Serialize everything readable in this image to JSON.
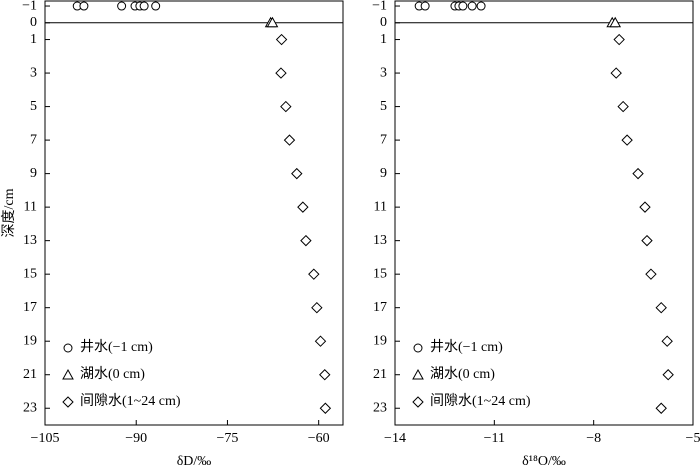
{
  "chart_data": [
    {
      "type": "scatter",
      "xlabel": "δD/‰",
      "ylabel": "深度/cm",
      "xlim": [
        -105,
        -56
      ],
      "ylim": [
        -1.3,
        24
      ],
      "y_inverted": true,
      "xticks": [
        {
          "value": -105,
          "label": "−105"
        },
        {
          "value": -90,
          "label": "−90"
        },
        {
          "value": -75,
          "label": "−75"
        },
        {
          "value": -60,
          "label": "−60"
        }
      ],
      "yticks": [
        {
          "value": -1,
          "label": "−1"
        },
        0,
        1,
        3,
        5,
        7,
        9,
        11,
        13,
        15,
        17,
        19,
        21,
        23
      ],
      "legend": "lower left",
      "series": [
        {
          "name": "井水(−1 cm)",
          "marker": "circle",
          "color": "#000000",
          "x": [
            -99.7,
            -98.6,
            -92.4,
            -90.2,
            -89.4,
            -88.7,
            -86.8
          ],
          "y": [
            -1,
            -1,
            -1,
            -1,
            -1,
            -1,
            -1
          ]
        },
        {
          "name": "湖水(0 cm)",
          "marker": "triangle",
          "color": "#000000",
          "x": [
            -67.9,
            -67.6
          ],
          "y": [
            0,
            0
          ]
        },
        {
          "name": "间隙水(1~24 cm)",
          "marker": "diamond",
          "color": "#000000",
          "x": [
            -66.1,
            -66.2,
            -65.4,
            -64.8,
            -63.6,
            -62.6,
            -62.1,
            -60.8,
            -60.3,
            -59.7,
            -59.0,
            -58.9
          ],
          "y": [
            1,
            3,
            5,
            7,
            9,
            11,
            13,
            15,
            17,
            19,
            21,
            23
          ]
        }
      ]
    },
    {
      "type": "scatter",
      "xlabel": "δ¹⁸O/‰",
      "xlim": [
        -14,
        -5
      ],
      "ylim": [
        -1.3,
        24
      ],
      "y_inverted": true,
      "xticks": [
        {
          "value": -14,
          "label": "−14"
        },
        {
          "value": -11,
          "label": "−11"
        },
        {
          "value": -8,
          "label": "−8"
        },
        {
          "value": -5,
          "label": "−5"
        }
      ],
      "yticks": [
        {
          "value": -1,
          "label": "−1"
        },
        0,
        1,
        3,
        5,
        7,
        9,
        11,
        13,
        15,
        17,
        19,
        21,
        23
      ],
      "legend": "lower left",
      "series": [
        {
          "name": "井水(−1 cm)",
          "marker": "circle",
          "color": "#000000",
          "x": [
            -13.27,
            -13.09,
            -12.19,
            -12.07,
            -11.95,
            -11.67,
            -11.4
          ],
          "y": [
            -1,
            -1,
            -1,
            -1,
            -1,
            -1,
            -1
          ]
        },
        {
          "name": "湖水(0 cm)",
          "marker": "triangle",
          "color": "#000000",
          "x": [
            -7.44,
            -7.35
          ],
          "y": [
            0,
            0
          ]
        },
        {
          "name": "间隙水(1~24 cm)",
          "marker": "diamond",
          "color": "#000000",
          "x": [
            -7.23,
            -7.32,
            -7.11,
            -6.99,
            -6.66,
            -6.45,
            -6.39,
            -6.27,
            -5.96,
            -5.78,
            -5.75,
            -5.96
          ],
          "y": [
            1,
            3,
            5,
            7,
            9,
            11,
            13,
            15,
            17,
            19,
            21,
            23
          ]
        }
      ]
    }
  ]
}
